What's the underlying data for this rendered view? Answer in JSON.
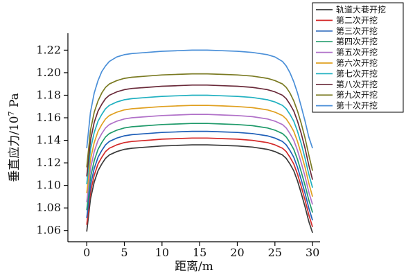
{
  "chart_data": {
    "type": "line",
    "title": "",
    "xlabel": "距离/m",
    "ylabel": "垂直应力/10",
    "ylabel_exp": "7",
    "ylabel_unit": " Pa",
    "xlim": [
      -2.5,
      31
    ],
    "ylim": [
      1.05,
      1.235
    ],
    "xticks": [
      0,
      5,
      10,
      15,
      20,
      25,
      30
    ],
    "yticks": [
      1.06,
      1.08,
      1.1,
      1.12,
      1.14,
      1.16,
      1.18,
      1.2,
      1.22
    ],
    "ytick_labels": [
      "1.06",
      "1.08",
      "1.10",
      "1.12",
      "1.14",
      "1.16",
      "1.18",
      "1.20",
      "1.22"
    ],
    "grid": false,
    "legend_position": "top-right",
    "x": [
      0,
      0.5,
      1,
      1.5,
      2,
      2.5,
      3,
      4,
      5,
      6,
      8,
      10,
      12,
      14,
      16,
      18,
      20,
      22,
      24,
      25,
      26,
      26.5,
      27,
      27.5,
      28,
      28.5,
      29,
      29.5,
      30
    ],
    "series": [
      {
        "name": "轨道大巷开挖",
        "color": "#3a3a3a",
        "values": [
          1.059,
          1.088,
          1.103,
          1.113,
          1.119,
          1.124,
          1.127,
          1.13,
          1.132,
          1.133,
          1.134,
          1.135,
          1.1355,
          1.136,
          1.136,
          1.1355,
          1.135,
          1.134,
          1.132,
          1.13,
          1.127,
          1.124,
          1.119,
          1.113,
          1.104,
          1.093,
          1.081,
          1.068,
          1.058
        ]
      },
      {
        "name": "第二次开挖",
        "color": "#d42a2a",
        "values": [
          1.065,
          1.094,
          1.109,
          1.119,
          1.125,
          1.13,
          1.133,
          1.136,
          1.138,
          1.139,
          1.14,
          1.141,
          1.1415,
          1.142,
          1.142,
          1.1415,
          1.141,
          1.14,
          1.138,
          1.136,
          1.133,
          1.13,
          1.125,
          1.119,
          1.11,
          1.099,
          1.087,
          1.074,
          1.063
        ]
      },
      {
        "name": "第三次开挖",
        "color": "#1f5fb8",
        "values": [
          1.071,
          1.1,
          1.115,
          1.125,
          1.131,
          1.136,
          1.139,
          1.142,
          1.144,
          1.145,
          1.146,
          1.147,
          1.1475,
          1.148,
          1.148,
          1.1475,
          1.147,
          1.146,
          1.144,
          1.142,
          1.139,
          1.136,
          1.131,
          1.125,
          1.116,
          1.105,
          1.093,
          1.08,
          1.069
        ]
      },
      {
        "name": "第四次开挖",
        "color": "#1f9a6a",
        "values": [
          1.078,
          1.107,
          1.122,
          1.132,
          1.138,
          1.143,
          1.146,
          1.149,
          1.151,
          1.152,
          1.153,
          1.154,
          1.1545,
          1.155,
          1.155,
          1.1545,
          1.154,
          1.153,
          1.151,
          1.149,
          1.146,
          1.143,
          1.138,
          1.132,
          1.123,
          1.112,
          1.1,
          1.087,
          1.076
        ]
      },
      {
        "name": "第五次开挖",
        "color": "#b070c8",
        "values": [
          1.085,
          1.115,
          1.13,
          1.14,
          1.146,
          1.151,
          1.154,
          1.157,
          1.159,
          1.16,
          1.161,
          1.162,
          1.1625,
          1.163,
          1.163,
          1.1625,
          1.162,
          1.161,
          1.159,
          1.157,
          1.154,
          1.151,
          1.146,
          1.14,
          1.131,
          1.12,
          1.108,
          1.094,
          1.083
        ]
      },
      {
        "name": "第六次开挖",
        "color": "#e0a020",
        "values": [
          1.093,
          1.123,
          1.138,
          1.148,
          1.154,
          1.159,
          1.162,
          1.165,
          1.167,
          1.168,
          1.169,
          1.17,
          1.1705,
          1.171,
          1.171,
          1.1705,
          1.17,
          1.169,
          1.167,
          1.165,
          1.162,
          1.159,
          1.154,
          1.148,
          1.139,
          1.128,
          1.116,
          1.102,
          1.09
        ]
      },
      {
        "name": "第七次开挖",
        "color": "#20b0c0",
        "values": [
          1.101,
          1.132,
          1.147,
          1.157,
          1.163,
          1.168,
          1.171,
          1.174,
          1.176,
          1.177,
          1.178,
          1.179,
          1.1795,
          1.18,
          1.18,
          1.1795,
          1.179,
          1.178,
          1.176,
          1.174,
          1.171,
          1.168,
          1.163,
          1.157,
          1.148,
          1.137,
          1.124,
          1.11,
          1.098
        ]
      },
      {
        "name": "第八次开挖",
        "color": "#6a2a3a",
        "values": [
          1.108,
          1.14,
          1.156,
          1.166,
          1.172,
          1.177,
          1.18,
          1.183,
          1.185,
          1.186,
          1.187,
          1.188,
          1.1885,
          1.189,
          1.189,
          1.1885,
          1.188,
          1.187,
          1.185,
          1.183,
          1.18,
          1.177,
          1.172,
          1.166,
          1.157,
          1.146,
          1.133,
          1.118,
          1.105
        ]
      },
      {
        "name": "第九次开挖",
        "color": "#7a7a22",
        "values": [
          1.116,
          1.149,
          1.165,
          1.175,
          1.182,
          1.187,
          1.19,
          1.193,
          1.195,
          1.196,
          1.197,
          1.198,
          1.1985,
          1.199,
          1.199,
          1.1985,
          1.198,
          1.197,
          1.195,
          1.193,
          1.19,
          1.187,
          1.182,
          1.175,
          1.166,
          1.155,
          1.142,
          1.127,
          1.113
        ]
      },
      {
        "name": "第十次开挖",
        "color": "#4a8fd8",
        "values": [
          1.133,
          1.165,
          1.182,
          1.193,
          1.201,
          1.206,
          1.21,
          1.214,
          1.216,
          1.217,
          1.218,
          1.219,
          1.2195,
          1.22,
          1.22,
          1.2195,
          1.219,
          1.218,
          1.216,
          1.214,
          1.21,
          1.206,
          1.2,
          1.192,
          1.182,
          1.17,
          1.157,
          1.143,
          1.133
        ]
      }
    ]
  }
}
